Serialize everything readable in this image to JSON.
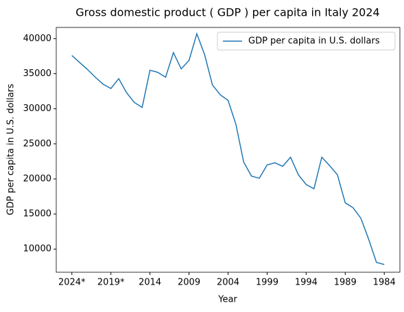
{
  "chart_data": {
    "type": "line",
    "title": "Gross domestic product ( GDP ) per capita in Italy 2024",
    "x_label": "Year",
    "y_label": "GDP per capita in U.S. dollars",
    "categories": [
      "2024*",
      null,
      null,
      null,
      null,
      "2019*",
      null,
      null,
      null,
      null,
      "2014",
      null,
      null,
      null,
      null,
      "2009",
      null,
      null,
      null,
      null,
      "2004",
      null,
      null,
      null,
      null,
      "1999",
      null,
      null,
      null,
      null,
      "1994",
      null,
      null,
      null,
      null,
      "1989",
      null,
      null,
      null,
      null,
      "1984"
    ],
    "series": [
      {
        "name": "GDP per capita in U.S. dollars",
        "color": "#1f77b4",
        "values": [
          37600,
          36600,
          35600,
          34500,
          33500,
          32900,
          34300,
          32300,
          30900,
          30200,
          35500,
          35200,
          34500,
          38000,
          35700,
          36900,
          40700,
          37700,
          33400,
          32000,
          31200,
          27800,
          22400,
          20400,
          20100,
          22000,
          22300,
          21800,
          23100,
          20600,
          19200,
          18600,
          23100,
          21900,
          20600,
          16600,
          15900,
          14400,
          11400,
          8100,
          7800
        ]
      }
    ],
    "ylim": [
      6700,
      41600
    ],
    "yticks": [
      10000,
      15000,
      20000,
      25000,
      30000,
      35000,
      40000
    ],
    "legend": "upper right"
  }
}
